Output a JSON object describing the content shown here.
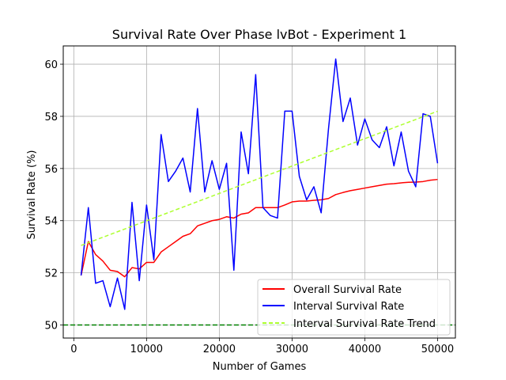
{
  "chart_data": {
    "type": "line",
    "title": "Survival Rate Over Phase lvBot - Experiment 1",
    "xlabel": "Number of Games",
    "ylabel": "Survival Rate (%)",
    "xlim": [
      -1450,
      52450
    ],
    "ylim": [
      49.5,
      60.7
    ],
    "xticks": [
      0,
      10000,
      20000,
      30000,
      40000,
      50000
    ],
    "xtick_labels": [
      "0",
      "10000",
      "20000",
      "30000",
      "40000",
      "50000"
    ],
    "yticks": [
      50,
      52,
      54,
      56,
      58,
      60
    ],
    "ytick_labels": [
      "50",
      "52",
      "54",
      "56",
      "58",
      "60"
    ],
    "grid": true,
    "legend_position": "lower right",
    "x": [
      1000,
      2000,
      3000,
      4000,
      5000,
      6000,
      7000,
      8000,
      9000,
      10000,
      11000,
      12000,
      13000,
      14000,
      15000,
      16000,
      17000,
      18000,
      19000,
      20000,
      21000,
      22000,
      23000,
      24000,
      25000,
      26000,
      27000,
      28000,
      29000,
      30000,
      31000,
      32000,
      33000,
      34000,
      35000,
      36000,
      37000,
      38000,
      39000,
      40000,
      41000,
      42000,
      43000,
      44000,
      45000,
      46000,
      47000,
      48000,
      49000,
      50000
    ],
    "series": [
      {
        "name": "Overall Survival Rate",
        "color": "#ff0000",
        "style": "solid",
        "values": [
          51.9,
          53.2,
          52.7,
          52.45,
          52.1,
          52.05,
          51.85,
          52.2,
          52.15,
          52.4,
          52.4,
          52.8,
          53.0,
          53.2,
          53.4,
          53.5,
          53.8,
          53.9,
          54.0,
          54.05,
          54.15,
          54.1,
          54.25,
          54.3,
          54.5,
          54.5,
          54.5,
          54.5,
          54.6,
          54.72,
          54.75,
          54.75,
          54.78,
          54.8,
          54.85,
          55.0,
          55.08,
          55.15,
          55.2,
          55.25,
          55.3,
          55.35,
          55.4,
          55.42,
          55.45,
          55.47,
          55.48,
          55.5,
          55.55,
          55.58
        ]
      },
      {
        "name": "Interval Survival Rate",
        "color": "#0000ff",
        "style": "solid",
        "values": [
          51.9,
          54.5,
          51.6,
          51.7,
          50.7,
          51.8,
          50.6,
          54.7,
          51.7,
          54.6,
          52.5,
          57.3,
          55.5,
          55.9,
          56.4,
          55.1,
          58.3,
          55.1,
          56.3,
          55.2,
          56.2,
          52.1,
          57.4,
          55.8,
          59.6,
          54.5,
          54.2,
          54.1,
          58.2,
          58.2,
          55.7,
          54.8,
          55.3,
          54.3,
          57.5,
          60.2,
          57.8,
          58.7,
          56.9,
          57.9,
          57.1,
          56.8,
          57.6,
          56.1,
          57.4,
          55.9,
          55.3,
          58.1,
          58.0,
          56.2
        ]
      },
      {
        "name": "Interval Survival Rate Trend",
        "color": "#adff2f",
        "style": "dashed",
        "values": [
          53.05,
          53.155,
          53.26,
          53.365,
          53.47,
          53.575,
          53.68,
          53.785,
          53.89,
          53.995,
          54.1,
          54.205,
          54.31,
          54.415,
          54.52,
          54.625,
          54.73,
          54.835,
          54.94,
          55.045,
          55.15,
          55.255,
          55.36,
          55.465,
          55.57,
          55.675,
          55.78,
          55.885,
          55.99,
          56.095,
          56.2,
          56.305,
          56.41,
          56.515,
          56.62,
          56.725,
          56.83,
          56.935,
          57.04,
          57.145,
          57.25,
          57.355,
          57.46,
          57.565,
          57.67,
          57.775,
          57.88,
          57.985,
          58.09,
          58.195
        ]
      }
    ],
    "reference_line": {
      "y": 50,
      "color": "#008000",
      "style": "dashed"
    }
  }
}
